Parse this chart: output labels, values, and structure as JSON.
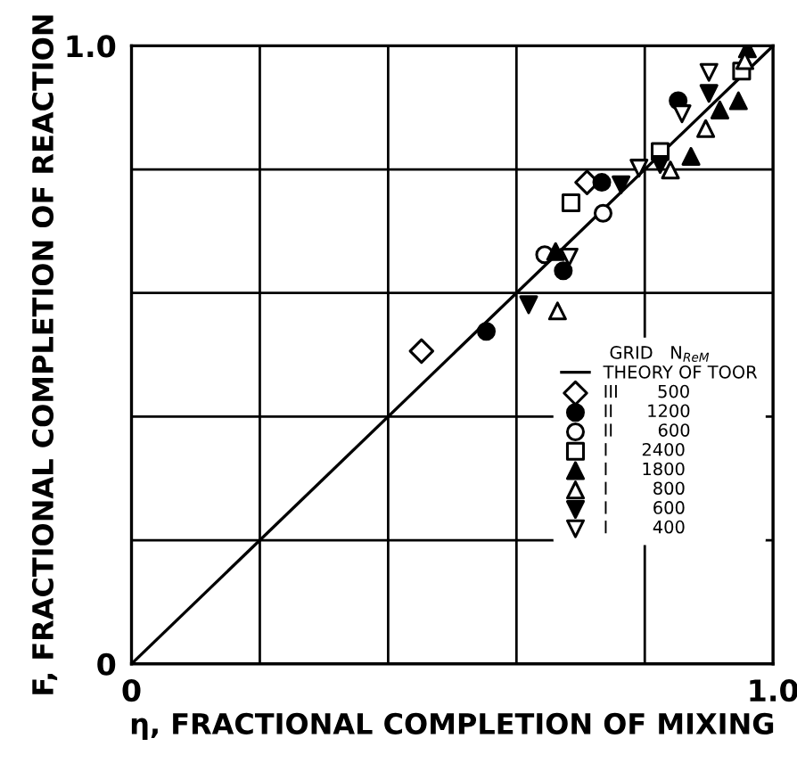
{
  "chart_data": {
    "type": "scatter",
    "xlabel": "η, FRACTIONAL COMPLETION OF MIXING",
    "ylabel": "F, FRACTIONAL COMPLETION OF REACTION",
    "legend_title": "GRID   N$_{ReM}$",
    "xlim": [
      0,
      1
    ],
    "ylim": [
      0,
      1
    ],
    "xticks": [
      0,
      {
        "value": 0.2,
        "label": null
      },
      {
        "value": 0.4,
        "label": null
      },
      {
        "value": 0.6,
        "label": null
      },
      {
        "value": 0.8,
        "label": null
      },
      {
        "value": 1,
        "label": "1.0"
      }
    ],
    "yticks": [
      0,
      {
        "value": 0.2,
        "label": null
      },
      {
        "value": 0.4,
        "label": null
      },
      {
        "value": 0.6,
        "label": null
      },
      {
        "value": 0.8,
        "label": null
      },
      {
        "value": 1,
        "label": "1.0"
      }
    ],
    "grid": true,
    "legend": "right",
    "series": [
      {
        "name": "THEORY OF TOOR",
        "type": "line",
        "color": "#000000",
        "x": [
          0,
          1
        ],
        "values": [
          0,
          1
        ],
        "marker": "none",
        "line_style": "solid"
      },
      {
        "name": "III       500",
        "color": "#ffffff",
        "marker": "diamond",
        "x": [
          0.452,
          0.71
        ],
        "values": [
          0.506,
          0.779
        ]
      },
      {
        "name": "II      1200",
        "color": "#000000",
        "marker": "circle",
        "x": [
          0.553,
          0.733,
          0.673,
          0.852
        ],
        "values": [
          0.538,
          0.779,
          0.636,
          0.911
        ]
      },
      {
        "name": "II        600",
        "color": "#ffffff",
        "marker": "circle",
        "x": [
          0.735,
          0.644
        ],
        "values": [
          0.729,
          0.662
        ]
      },
      {
        "name": "I      2400",
        "color": "#ffffff",
        "marker": "square",
        "x": [
          0.685,
          0.824,
          0.951
        ],
        "values": [
          0.746,
          0.829,
          0.959
        ]
      },
      {
        "name": "I      1800",
        "color": "#000000",
        "marker": "triangle",
        "x": [
          0.661,
          0.872,
          0.946,
          0.917,
          0.96
        ],
        "values": [
          0.667,
          0.821,
          0.911,
          0.896,
          0.995
        ]
      },
      {
        "name": "I        800",
        "color": "#ffffff",
        "marker": "triangle",
        "x": [
          0.664,
          0.84,
          0.895,
          0.956
        ],
        "values": [
          0.571,
          0.799,
          0.866,
          0.976
        ]
      },
      {
        "name": "I        600",
        "color": "#000000",
        "marker": "triangle_down",
        "x": [
          0.619,
          0.763,
          0.9,
          0.824
        ],
        "values": [
          0.581,
          0.775,
          0.923,
          0.808
        ]
      },
      {
        "name": "I        400",
        "color": "#ffffff",
        "marker": "triangle_down",
        "x": [
          0.682,
          0.791,
          0.9,
          0.858
        ],
        "values": [
          0.658,
          0.802,
          0.957,
          0.89
        ]
      }
    ]
  }
}
